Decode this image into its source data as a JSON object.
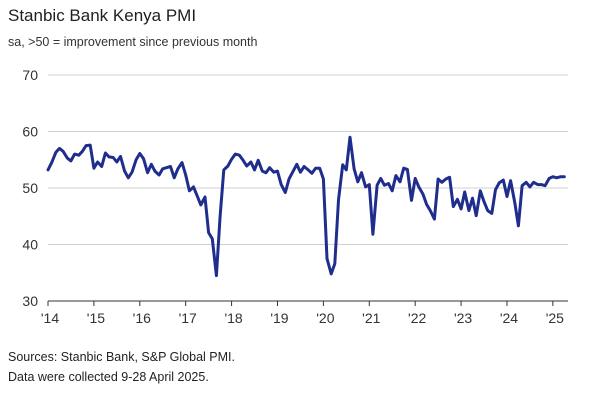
{
  "colors": {
    "line": "#1f2d8c",
    "grid": "#d0d0d0",
    "axis": "#333333"
  },
  "footer": {
    "sources": "Sources: Stanbic Bank, S&P Global PMI.",
    "collected": "Data were collected 9-28 April 2025."
  },
  "chart_data": {
    "type": "line",
    "title": "Stanbic Bank Kenya PMI",
    "subtitle": "sa, >50 = improvement since previous month",
    "xlabel": "",
    "ylabel": "",
    "ylim": [
      30,
      70
    ],
    "yticks": [
      30,
      40,
      50,
      60,
      70
    ],
    "xlim": [
      2014.0,
      2025.33
    ],
    "xtick_labels": [
      "'14",
      "'15",
      "'16",
      "'17",
      "'18",
      "'19",
      "'20",
      "'21",
      "'22",
      "'23",
      "'24",
      "'25"
    ],
    "xtick_values": [
      2014,
      2015,
      2016,
      2017,
      2018,
      2019,
      2020,
      2021,
      2022,
      2023,
      2024,
      2025
    ],
    "grid": true,
    "series": [
      {
        "name": "",
        "x": [
          2014.0,
          2014.08,
          2014.17,
          2014.25,
          2014.33,
          2014.42,
          2014.5,
          2014.58,
          2014.67,
          2014.75,
          2014.83,
          2014.92,
          2015.0,
          2015.08,
          2015.17,
          2015.25,
          2015.33,
          2015.42,
          2015.5,
          2015.58,
          2015.67,
          2015.75,
          2015.83,
          2015.92,
          2016.0,
          2016.08,
          2016.17,
          2016.25,
          2016.33,
          2016.42,
          2016.5,
          2016.58,
          2016.67,
          2016.75,
          2016.83,
          2016.92,
          2017.0,
          2017.08,
          2017.17,
          2017.25,
          2017.33,
          2017.42,
          2017.5,
          2017.58,
          2017.67,
          2017.75,
          2017.83,
          2017.92,
          2018.0,
          2018.08,
          2018.17,
          2018.25,
          2018.33,
          2018.42,
          2018.5,
          2018.58,
          2018.67,
          2018.75,
          2018.83,
          2018.92,
          2019.0,
          2019.08,
          2019.17,
          2019.25,
          2019.33,
          2019.42,
          2019.5,
          2019.58,
          2019.67,
          2019.75,
          2019.83,
          2019.92,
          2020.0,
          2020.08,
          2020.17,
          2020.25,
          2020.33,
          2020.42,
          2020.5,
          2020.58,
          2020.67,
          2020.75,
          2020.83,
          2020.92,
          2021.0,
          2021.08,
          2021.17,
          2021.25,
          2021.33,
          2021.42,
          2021.5,
          2021.58,
          2021.67,
          2021.75,
          2021.83,
          2021.92,
          2022.0,
          2022.08,
          2022.17,
          2022.25,
          2022.33,
          2022.42,
          2022.5,
          2022.58,
          2022.67,
          2022.75,
          2022.83,
          2022.92,
          2023.0,
          2023.08,
          2023.17,
          2023.25,
          2023.33,
          2023.42,
          2023.5,
          2023.58,
          2023.67,
          2023.75,
          2023.83,
          2023.92,
          2024.0,
          2024.08,
          2024.17,
          2024.25,
          2024.33,
          2024.42,
          2024.5,
          2024.58,
          2024.67,
          2024.75,
          2024.83,
          2024.92,
          2025.0,
          2025.08,
          2025.17,
          2025.25
        ],
        "values": [
          53.2,
          54.5,
          56.3,
          57.0,
          56.5,
          55.3,
          54.8,
          56.0,
          55.8,
          56.5,
          57.5,
          57.6,
          53.5,
          54.6,
          53.8,
          56.2,
          55.5,
          55.4,
          54.6,
          55.6,
          53.0,
          51.8,
          52.8,
          55.0,
          56.1,
          55.2,
          52.7,
          54.2,
          53.0,
          52.3,
          53.4,
          53.6,
          53.8,
          51.8,
          53.4,
          54.5,
          52.3,
          49.5,
          50.2,
          48.6,
          47.0,
          48.4,
          42.1,
          41.0,
          34.5,
          45.0,
          53.2,
          53.9,
          55.1,
          56.0,
          55.8,
          54.9,
          53.9,
          54.6,
          53.2,
          54.9,
          53.0,
          52.7,
          53.6,
          52.8,
          53.0,
          50.6,
          49.2,
          51.6,
          52.8,
          54.2,
          52.8,
          53.8,
          53.2,
          52.6,
          53.5,
          53.5,
          51.6,
          37.5,
          34.8,
          36.6,
          47.9,
          54.1,
          53.2,
          59.0,
          53.4,
          51.1,
          52.7,
          50.2,
          50.6,
          41.8,
          50.5,
          51.7,
          50.5,
          50.8,
          49.5,
          52.2,
          51.1,
          53.5,
          53.3,
          47.8,
          51.7,
          50.2,
          48.9,
          47.1,
          46.0,
          44.5,
          51.6,
          51.0,
          51.6,
          51.9,
          46.7,
          48.0,
          46.3,
          49.3,
          46.0,
          48.2,
          45.1,
          49.5,
          47.6,
          46.0,
          45.5,
          49.7,
          50.9,
          51.4,
          48.5,
          51.3,
          47.4,
          43.3,
          50.4,
          51.0,
          50.2,
          51.0,
          50.6,
          50.6,
          50.4,
          51.7,
          52.0,
          51.8,
          52.0,
          52.0
        ]
      }
    ]
  }
}
